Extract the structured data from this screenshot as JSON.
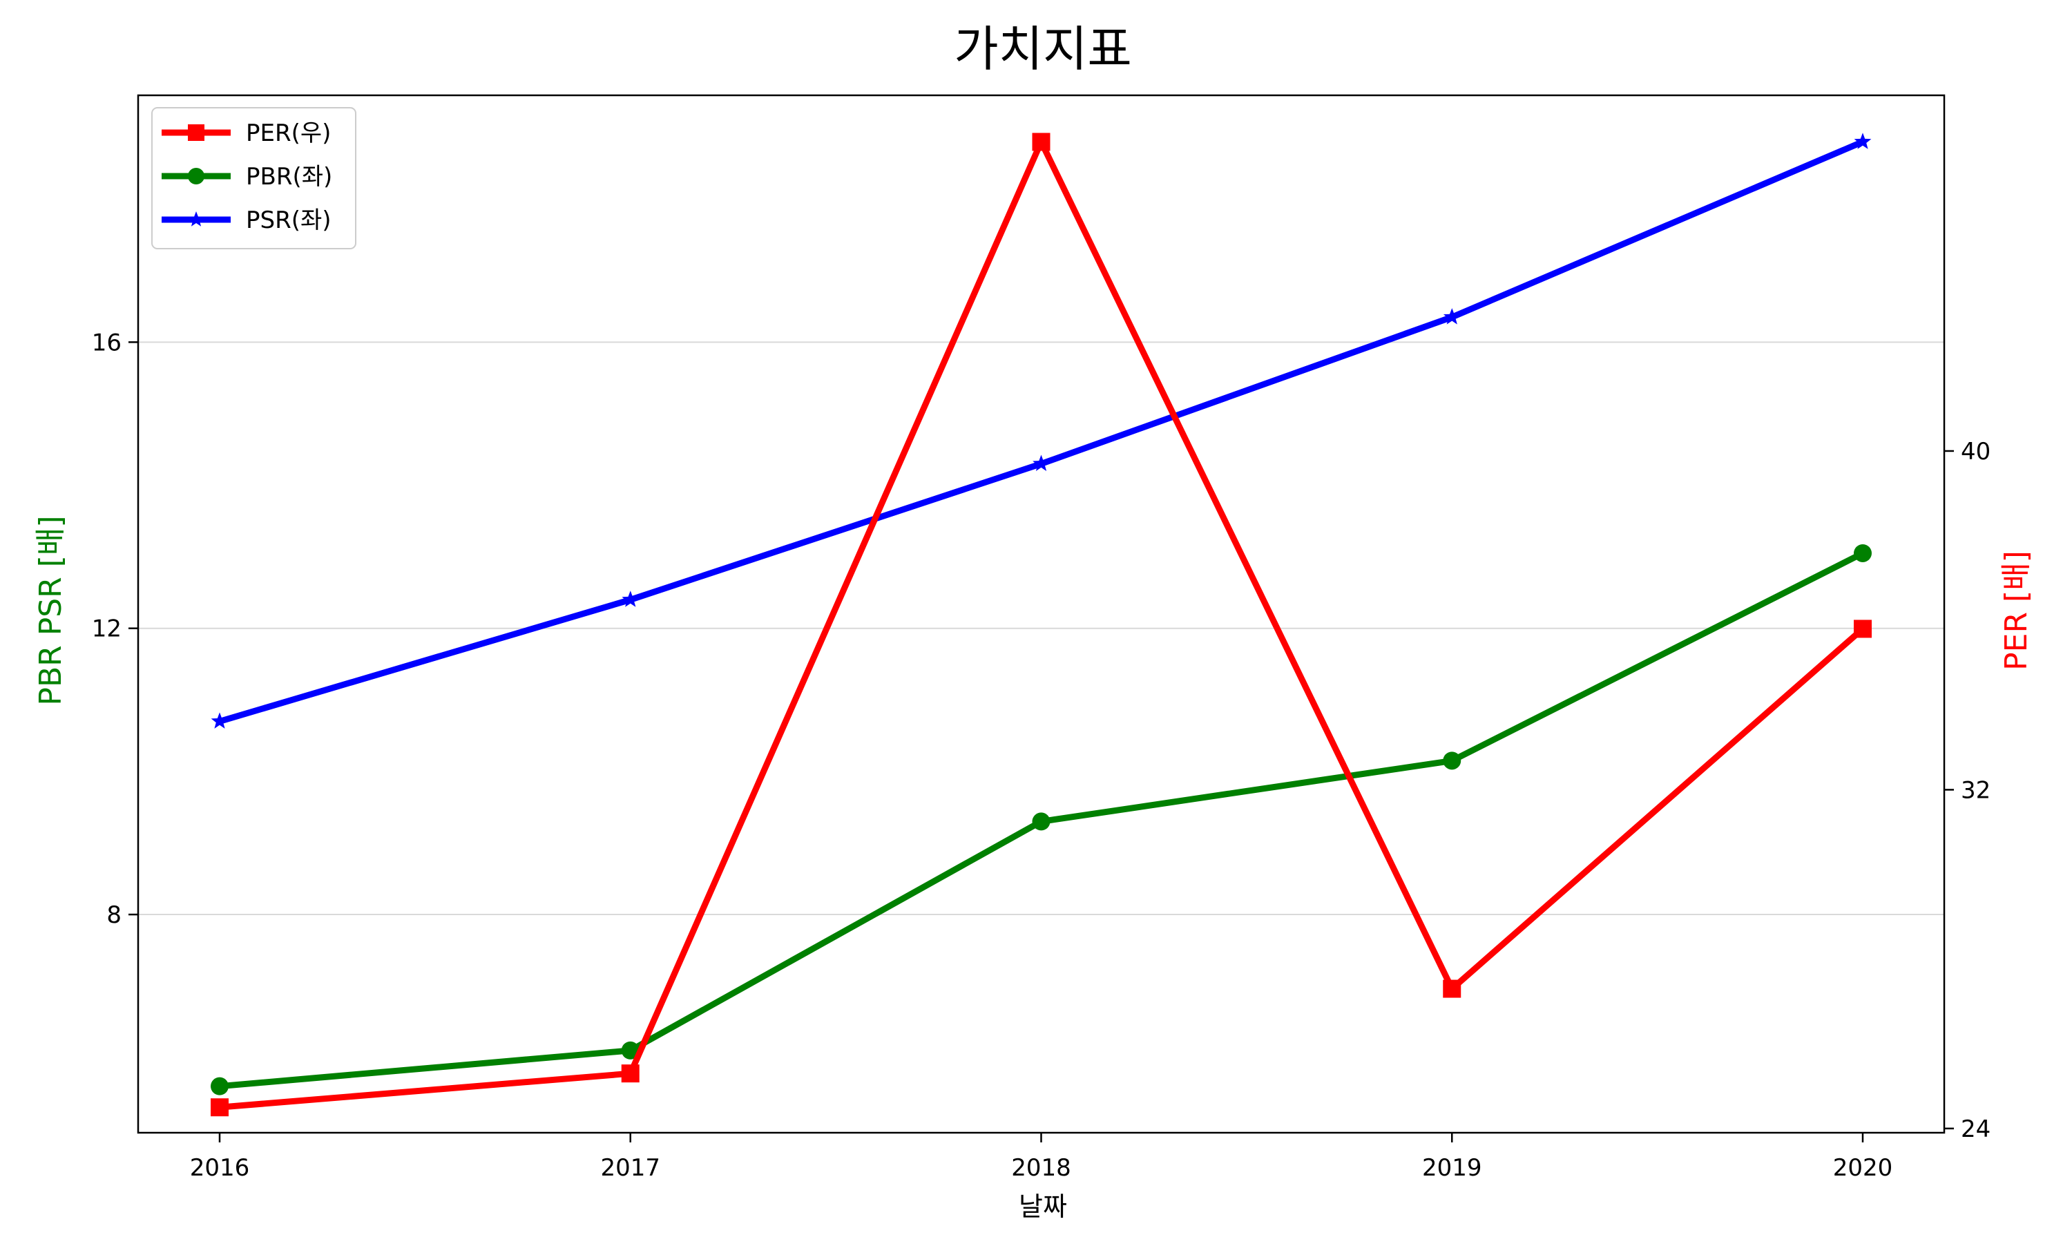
{
  "chart_data": {
    "type": "line",
    "title": "가치지표",
    "xlabel": "날짜",
    "ylabel_left": "PBR PSR [배]",
    "ylabel_right": "PER [배]",
    "categories": [
      "2016",
      "2017",
      "2018",
      "2019",
      "2020"
    ],
    "left_axis": {
      "ylim": [
        4.95,
        19.45
      ],
      "ticks": [
        8,
        12,
        16
      ]
    },
    "right_axis": {
      "ylim": [
        23.9,
        48.4
      ],
      "ticks": [
        24,
        32,
        40
      ]
    },
    "grid": "horizontal (left axis)",
    "legend_position": "top-left",
    "series": [
      {
        "name": "PER(우)",
        "axis": "right",
        "color": "#ff0000",
        "marker": "square",
        "values": [
          24.5,
          25.3,
          47.3,
          27.3,
          35.8
        ]
      },
      {
        "name": "PBR(좌)",
        "axis": "left",
        "color": "#008000",
        "marker": "circle",
        "values": [
          5.6,
          6.1,
          9.3,
          10.15,
          13.05
        ]
      },
      {
        "name": "PSR(좌)",
        "axis": "left",
        "color": "#0000ff",
        "marker": "star",
        "values": [
          10.7,
          12.4,
          14.3,
          16.35,
          18.8
        ]
      }
    ]
  }
}
